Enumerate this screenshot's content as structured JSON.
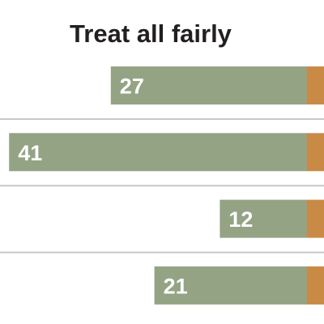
{
  "chart_data": {
    "type": "bar",
    "orientation": "horizontal",
    "title": "Treat all fairly",
    "series": [
      {
        "values": [
          27,
          41,
          12,
          21
        ]
      }
    ],
    "data_labels": [
      "27",
      "41",
      "12",
      "21"
    ],
    "grid": false,
    "legend": "none"
  },
  "colors": {
    "bar": "#94a384",
    "adjacent_segment": "#c98a46",
    "title": "#231f20",
    "label": "#ffffff",
    "separator": "#c8c8c8"
  }
}
